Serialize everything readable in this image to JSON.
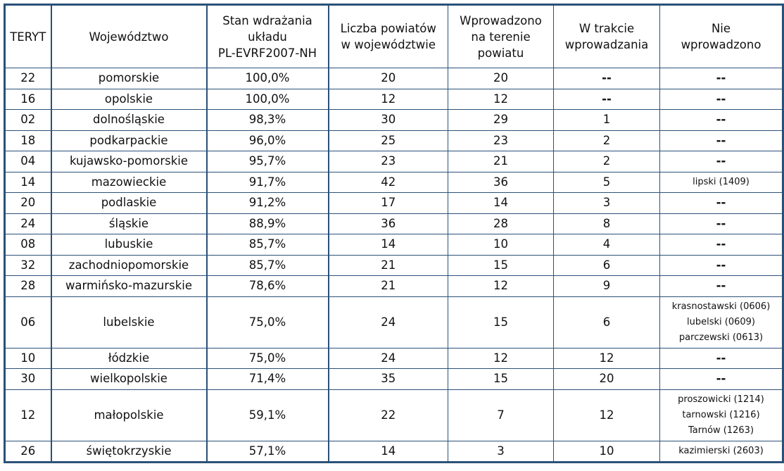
{
  "table": {
    "headers": {
      "teryt": "TERYT",
      "wojewodztwo": "Województwo",
      "stan_l1": "Stan wdrażania",
      "stan_l2": "układu",
      "stan_l3": "PL-EVRF2007-NH",
      "liczba_l1": "Liczba powiatów",
      "liczba_l2": "w województwie",
      "wprow_l1": "Wprowadzono",
      "wprow_l2": "na terenie",
      "wprow_l3": "powiatu",
      "trakcie_l1": "W trakcie",
      "trakcie_l2": "wprowadzania",
      "nie_l1": "Nie",
      "nie_l2": "wprowadzono"
    },
    "rows": [
      {
        "teryt": "22",
        "woj": "pomorskie",
        "stan": "100,0%",
        "liczba": "20",
        "wprow": "20",
        "trakcie": "--",
        "nie": [
          "--"
        ]
      },
      {
        "teryt": "16",
        "woj": "opolskie",
        "stan": "100,0%",
        "liczba": "12",
        "wprow": "12",
        "trakcie": "--",
        "nie": [
          "--"
        ]
      },
      {
        "teryt": "02",
        "woj": "dolnośląskie",
        "stan": "98,3%",
        "liczba": "30",
        "wprow": "29",
        "trakcie": "1",
        "nie": [
          "--"
        ]
      },
      {
        "teryt": "18",
        "woj": "podkarpackie",
        "stan": "96,0%",
        "liczba": "25",
        "wprow": "23",
        "trakcie": "2",
        "nie": [
          "--"
        ]
      },
      {
        "teryt": "04",
        "woj": "kujawsko-pomorskie",
        "stan": "95,7%",
        "liczba": "23",
        "wprow": "21",
        "trakcie": "2",
        "nie": [
          "--"
        ]
      },
      {
        "teryt": "14",
        "woj": "mazowieckie",
        "stan": "91,7%",
        "liczba": "42",
        "wprow": "36",
        "trakcie": "5",
        "nie": [
          "lipski (1409)"
        ]
      },
      {
        "teryt": "20",
        "woj": "podlaskie",
        "stan": "91,2%",
        "liczba": "17",
        "wprow": "14",
        "trakcie": "3",
        "nie": [
          "--"
        ]
      },
      {
        "teryt": "24",
        "woj": "śląskie",
        "stan": "88,9%",
        "liczba": "36",
        "wprow": "28",
        "trakcie": "8",
        "nie": [
          "--"
        ]
      },
      {
        "teryt": "08",
        "woj": "lubuskie",
        "stan": "85,7%",
        "liczba": "14",
        "wprow": "10",
        "trakcie": "4",
        "nie": [
          "--"
        ]
      },
      {
        "teryt": "32",
        "woj": "zachodniopomorskie",
        "stan": "85,7%",
        "liczba": "21",
        "wprow": "15",
        "trakcie": "6",
        "nie": [
          "--"
        ]
      },
      {
        "teryt": "28",
        "woj": "warmińsko-mazurskie",
        "stan": "78,6%",
        "liczba": "21",
        "wprow": "12",
        "trakcie": "9",
        "nie": [
          "--"
        ]
      },
      {
        "teryt": "06",
        "woj": "lubelskie",
        "stan": "75,0%",
        "liczba": "24",
        "wprow": "15",
        "trakcie": "6",
        "nie": [
          "krasnostawski (0606)",
          "lubelski (0609)",
          "parczewski (0613)"
        ]
      },
      {
        "teryt": "10",
        "woj": "łódzkie",
        "stan": "75,0%",
        "liczba": "24",
        "wprow": "12",
        "trakcie": "12",
        "nie": [
          "--"
        ]
      },
      {
        "teryt": "30",
        "woj": "wielkopolskie",
        "stan": "71,4%",
        "liczba": "35",
        "wprow": "15",
        "trakcie": "20",
        "nie": [
          "--"
        ]
      },
      {
        "teryt": "12",
        "woj": "małopolskie",
        "stan": "59,1%",
        "liczba": "22",
        "wprow": "7",
        "trakcie": "12",
        "nie": [
          "proszowicki (1214)",
          "tarnowski (1216)",
          "Tarnów (1263)"
        ]
      },
      {
        "teryt": "26",
        "woj": "świętokrzyskie",
        "stan": "57,1%",
        "liczba": "14",
        "wprow": "3",
        "trakcie": "10",
        "nie": [
          "kazimierski (2603)"
        ]
      }
    ]
  },
  "colors": {
    "border": "#2a5178",
    "text": "#111111",
    "background": "#ffffff"
  }
}
